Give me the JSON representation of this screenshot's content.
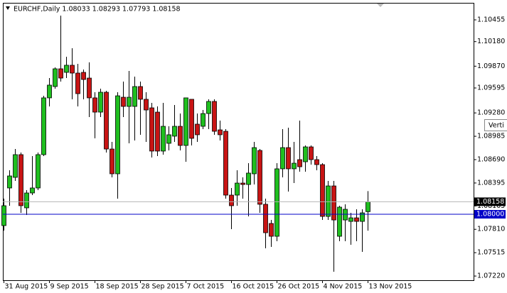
{
  "chart_data": {
    "type": "candlestick",
    "title": "EURCHF,Daily  1.08033 1.08293 1.07793 1.08158",
    "categories": [
      "31 Aug 2015",
      null,
      null,
      null,
      null,
      null,
      null,
      null,
      "9 Sep 2015",
      null,
      null,
      null,
      null,
      null,
      null,
      null,
      "18 Sep 2015",
      null,
      null,
      null,
      null,
      null,
      null,
      null,
      "28 Sep 2015",
      null,
      null,
      null,
      null,
      null,
      null,
      null,
      "7 Oct 2015",
      null,
      null,
      null,
      null,
      null,
      null,
      null,
      "16 Oct 2015",
      null,
      null,
      null,
      null,
      null,
      null,
      null,
      "26 Oct 2015",
      null,
      null,
      null,
      null,
      null,
      null,
      null,
      "4 Nov 2015",
      null,
      null,
      null,
      null,
      null,
      null,
      null,
      "13 Nov 2015"
    ],
    "open": [
      1.07857,
      1.08332,
      1.08466,
      1.08753,
      1.08081,
      1.08269,
      1.08332,
      1.08753,
      1.0947,
      1.09613,
      1.09837,
      1.09792,
      1.09882,
      1.09783,
      1.09792,
      1.0972,
      1.0947,
      1.0929,
      1.09541,
      1.08824,
      1.08511,
      1.09478,
      1.09362,
      1.09362,
      1.09613,
      1.09452,
      1.09344,
      1.0929,
      1.08798,
      1.08896,
      1.08986,
      1.09111,
      1.08869,
      1.09452,
      1.09138,
      1.09111,
      1.09272,
      1.09425,
      1.09066,
      1.09048,
      1.08242,
      1.08242,
      1.08394,
      1.08376,
      1.08511,
      1.08806,
      1.08126,
      1.07884,
      1.07722,
      1.08574,
      1.08842,
      1.08574,
      1.0869,
      1.08663,
      1.08851,
      1.0869,
      1.08627,
      1.07973,
      1.08358,
      1.07722,
      1.07928,
      1.0791,
      1.07955,
      1.0791,
      1.08033
    ],
    "high": [
      1.08197,
      1.08556,
      1.08824,
      1.0878,
      1.08305,
      1.08735,
      1.0878,
      1.09496,
      1.0972,
      1.09855,
      1.10509,
      1.09989,
      1.10097,
      1.099,
      1.09828,
      1.09918,
      1.09541,
      1.09586,
      1.09559,
      1.08914,
      1.09541,
      1.09676,
      1.0981,
      1.09738,
      1.09676,
      1.09541,
      1.09407,
      1.09362,
      1.09407,
      1.09111,
      1.0938,
      1.09272,
      1.0947,
      1.09452,
      1.09272,
      1.09317,
      1.09452,
      1.09452,
      1.09183,
      1.09075,
      1.08332,
      1.08556,
      1.08466,
      1.08645,
      1.08914,
      1.08824,
      1.08197,
      1.07928,
      1.08645,
      1.09075,
      1.09093,
      1.08914,
      1.09183,
      1.08869,
      1.08869,
      1.08735,
      1.08645,
      1.08421,
      1.08421,
      1.08108,
      1.08126,
      1.08018,
      1.08063,
      1.08063,
      1.08293
    ],
    "low": [
      1.07794,
      1.08108,
      1.08421,
      1.08018,
      1.07991,
      1.08242,
      1.08305,
      1.08735,
      1.09362,
      1.09586,
      1.09676,
      1.0972,
      1.09452,
      1.09362,
      1.09452,
      1.09228,
      1.08959,
      1.09228,
      1.0878,
      1.08466,
      1.08197,
      1.09228,
      1.08896,
      1.08932,
      1.09004,
      1.08914,
      1.08717,
      1.08735,
      1.08753,
      1.08806,
      1.08914,
      1.08806,
      1.08663,
      1.08869,
      1.08914,
      1.09075,
      1.09075,
      1.09004,
      1.08932,
      1.08197,
      1.07812,
      1.08108,
      1.08197,
      1.07973,
      1.08376,
      1.08018,
      1.0757,
      1.07588,
      1.0766,
      1.08466,
      1.08287,
      1.08394,
      1.08538,
      1.08538,
      1.08627,
      1.08556,
      1.07928,
      1.07928,
      1.07274,
      1.0766,
      1.0766,
      1.07615,
      1.0766,
      1.07525,
      1.07793
    ],
    "close": [
      1.08108,
      1.08484,
      1.08753,
      1.08108,
      1.08269,
      1.08332,
      1.08753,
      1.0947,
      1.09631,
      1.09837,
      1.0972,
      1.09882,
      1.09783,
      1.09523,
      1.09702,
      1.0947,
      1.0929,
      1.09541,
      1.08824,
      1.08511,
      1.09496,
      1.09362,
      1.09478,
      1.09613,
      1.09452,
      1.09317,
      1.08798,
      1.08798,
      1.09111,
      1.09004,
      1.09111,
      1.08869,
      1.0947,
      1.08959,
      1.09004,
      1.09272,
      1.09425,
      1.09048,
      1.09004,
      1.08242,
      1.08108,
      1.08394,
      1.08376,
      1.0852,
      1.08842,
      1.08126,
      1.07767,
      1.07722,
      1.08574,
      1.08842,
      1.08574,
      1.08645,
      1.086,
      1.08851,
      1.0869,
      1.08627,
      1.07973,
      1.08358,
      1.07928,
      1.0809,
      1.08063,
      1.07955,
      1.0791,
      1.08018,
      1.08158
    ],
    "up_color": "#1fbf1f",
    "down_color": "#c81414",
    "ylim": [
      1.07167,
      1.1067
    ],
    "yticks": [
      1.10455,
      {
        "value": 1.1018,
        "label": "1.10180"
      },
      {
        "value": 1.0987,
        "label": "1.09870"
      },
      1.09595,
      {
        "value": 1.0928,
        "label": "1.09280"
      },
      1.08985,
      {
        "value": 1.0869,
        "label": "1.08690"
      },
      1.08395,
      1.08105,
      {
        "value": 1.0781,
        "label": "1.07810"
      },
      1.07515,
      {
        "value": 1.0722,
        "label": "1.07220"
      }
    ],
    "price_lines": [
      {
        "value": 1.08158,
        "label": "1.08158",
        "color": "#b4b4b4",
        "label_color": "#000000"
      },
      {
        "value": 1.08,
        "label": "1.08000",
        "color": "#0000c8",
        "label_color": "#0000c8"
      }
    ],
    "tooltip": "Verti"
  }
}
